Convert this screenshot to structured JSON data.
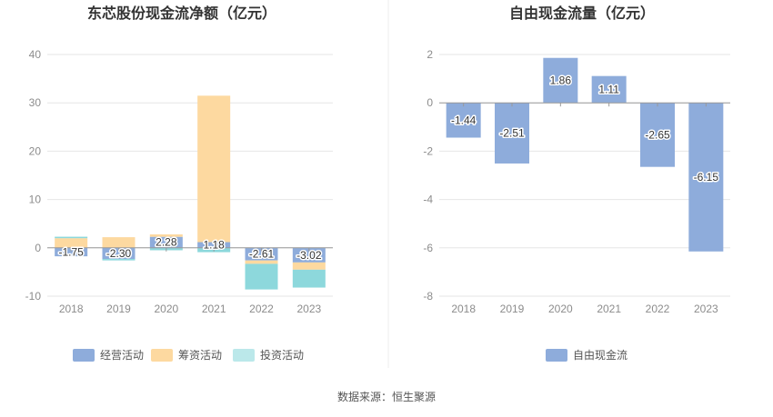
{
  "source_note": "数据来源：恒生聚源",
  "chart_data": [
    {
      "type": "bar",
      "stacked": true,
      "title": "东芯股份现金流净额（亿元）",
      "categories": [
        "2018",
        "2019",
        "2020",
        "2021",
        "2022",
        "2023"
      ],
      "ylim": [
        -10,
        40
      ],
      "yticks": [
        -10,
        0,
        10,
        20,
        30,
        40
      ],
      "grid": true,
      "legend_position": "bottom",
      "series": [
        {
          "name": "经营活动",
          "color": "#8eacdb",
          "values": [
            -1.75,
            -2.3,
            2.28,
            1.18,
            -2.61,
            -3.02
          ]
        },
        {
          "name": "筹资活动",
          "color": "#fdd9a0",
          "values": [
            2.0,
            2.2,
            0.5,
            30.3,
            -0.7,
            -1.5
          ]
        },
        {
          "name": "投资活动",
          "color": "#8dd8dc",
          "values": [
            0.3,
            -0.3,
            -0.5,
            -0.9,
            -5.3,
            -3.7
          ]
        }
      ],
      "data_labels": {
        "series": "经营活动",
        "text": [
          "-1.75",
          "-2.30",
          "2.28",
          "1.18",
          "-2.61",
          "-3.02"
        ]
      }
    },
    {
      "type": "bar",
      "title": "自由现金流量（亿元）",
      "categories": [
        "2018",
        "2019",
        "2020",
        "2021",
        "2022",
        "2023"
      ],
      "ylim": [
        -8,
        2
      ],
      "yticks": [
        -8,
        -6,
        -4,
        -2,
        0,
        2
      ],
      "grid": true,
      "legend_position": "bottom",
      "series": [
        {
          "name": "自由现金流",
          "color": "#8eacdb",
          "values": [
            -1.44,
            -2.51,
            1.86,
            1.11,
            -2.65,
            -6.15
          ]
        }
      ],
      "data_labels": {
        "series": "自由现金流",
        "text": [
          "-1.44",
          "-2.51",
          "1.86",
          "1.11",
          "-2.65",
          "-6.15"
        ]
      }
    }
  ]
}
